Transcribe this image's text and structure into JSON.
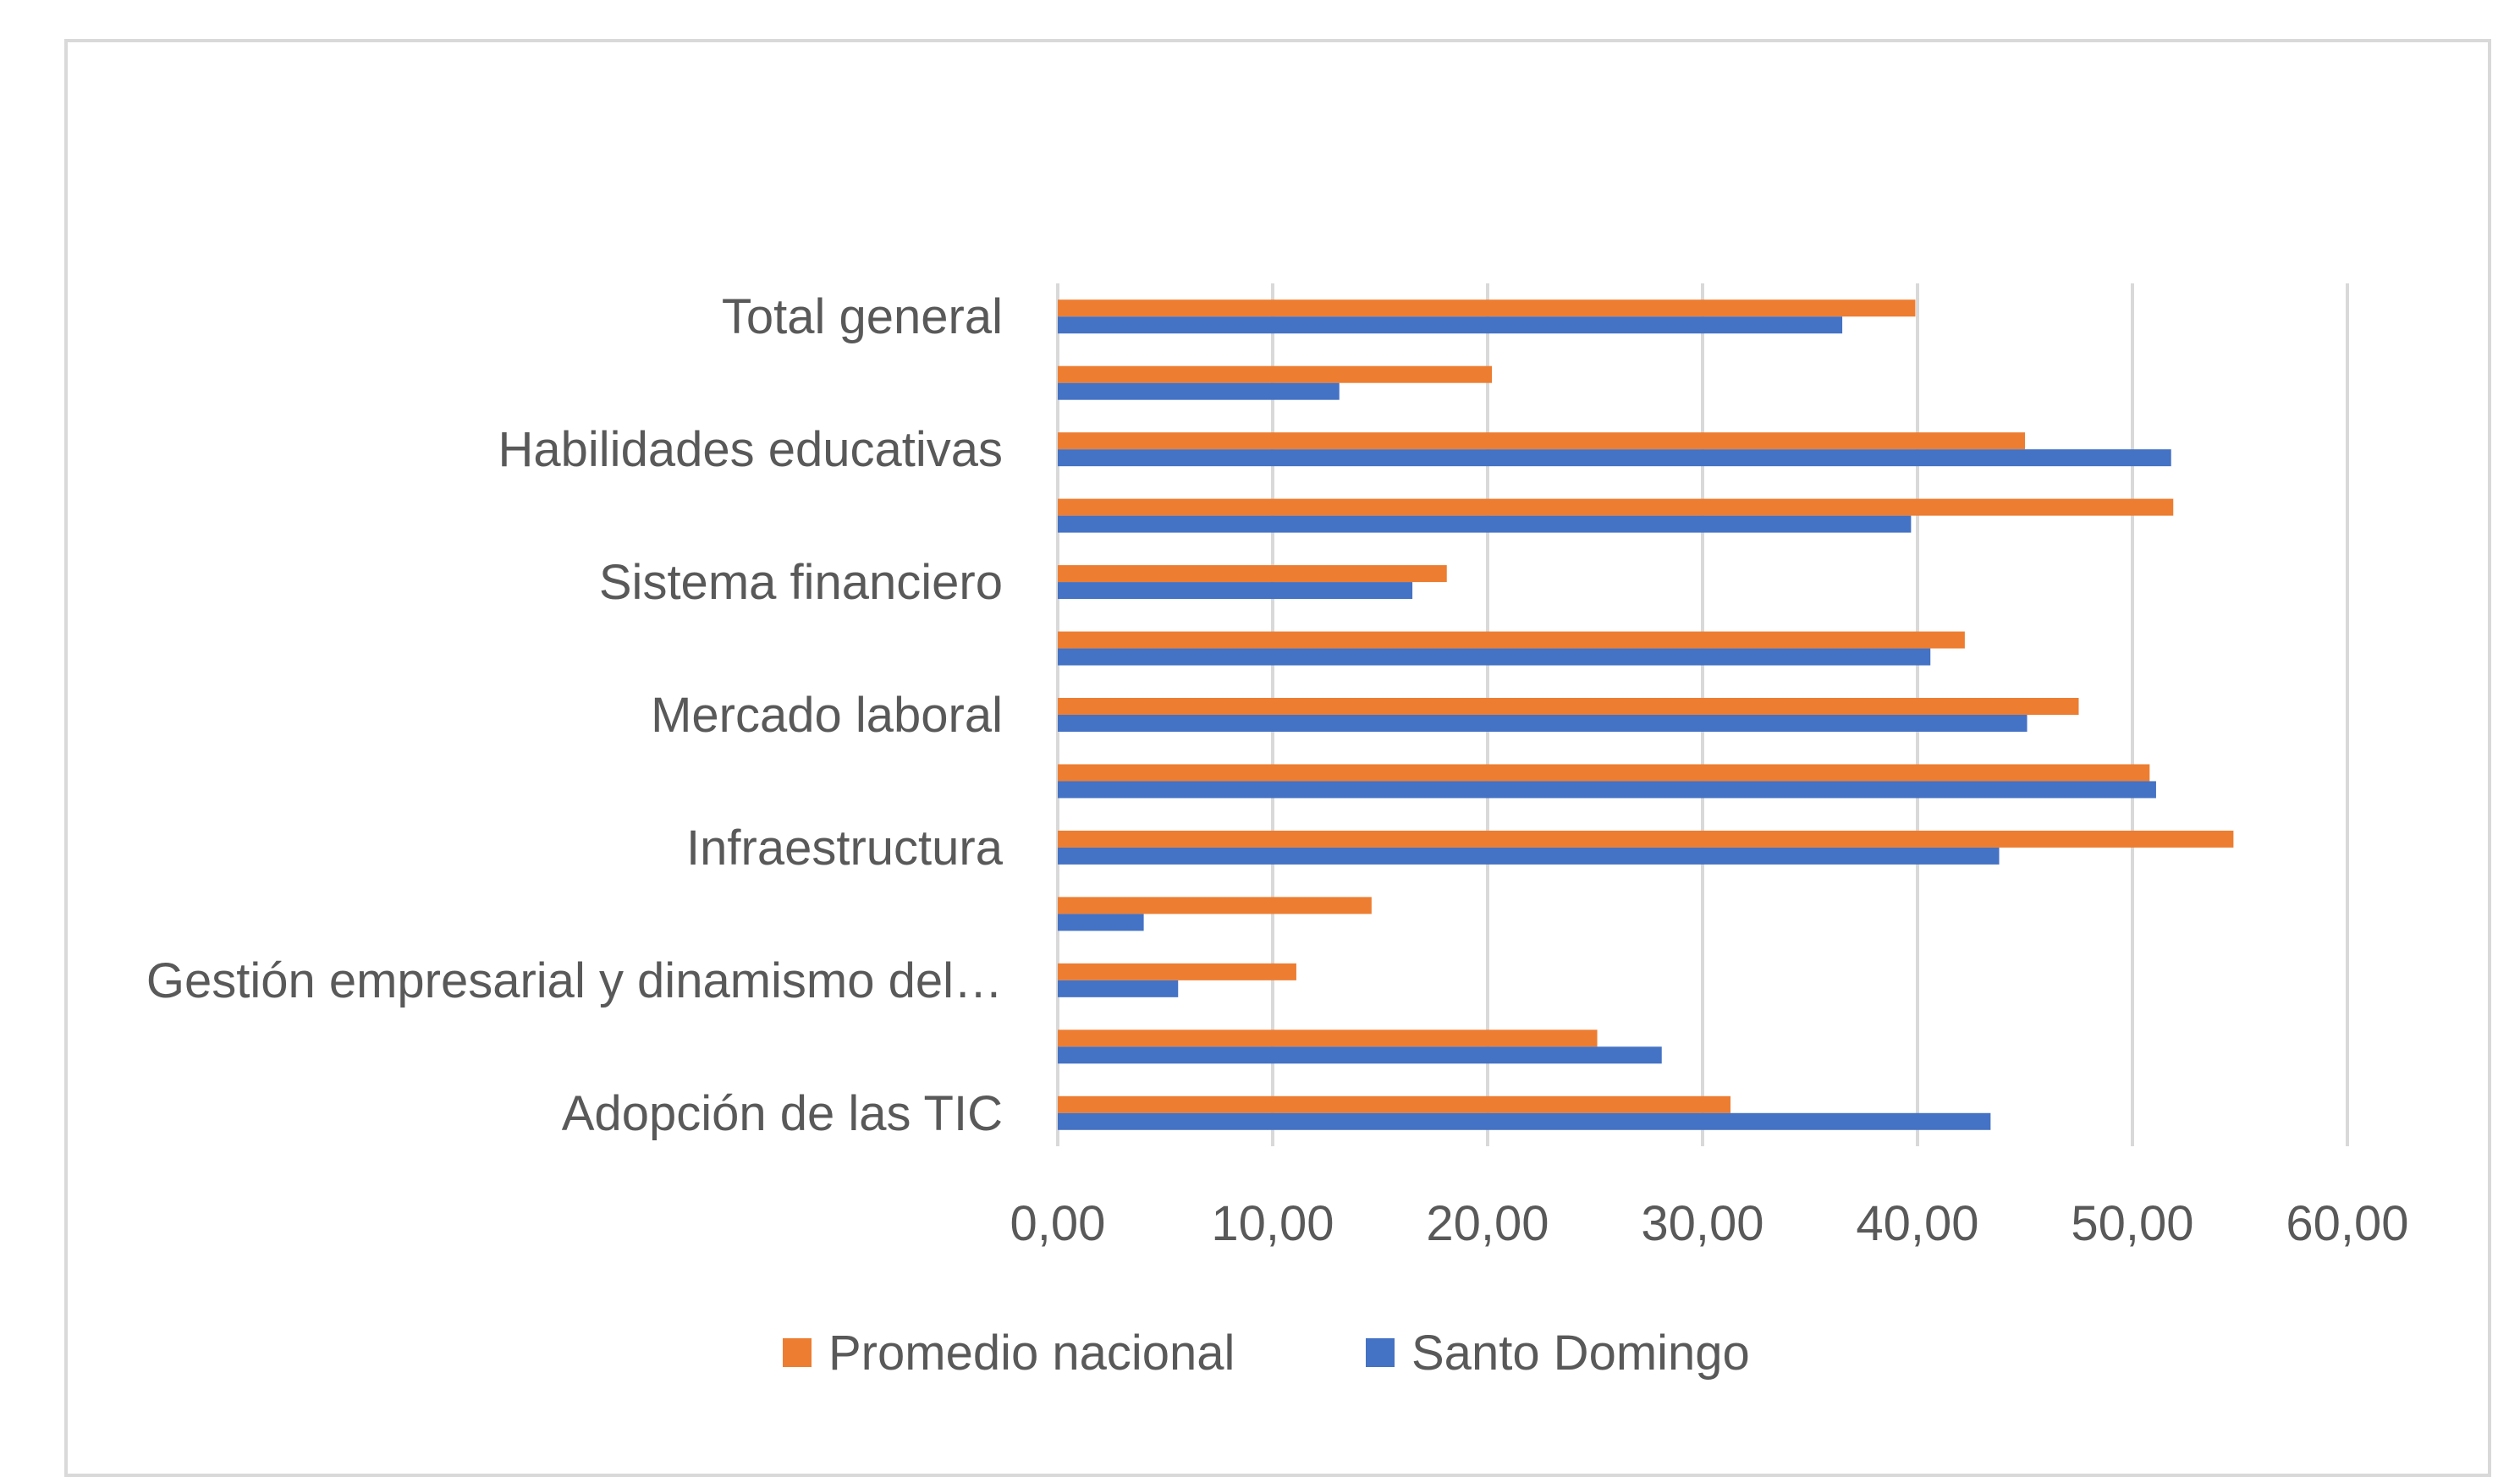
{
  "colors": {
    "promedio_nacional": "#ed7d31",
    "santo_domingo": "#4472c4",
    "grid": "#d9d9d9",
    "text": "#595959"
  },
  "chart_data": {
    "type": "bar",
    "orientation": "horizontal",
    "title": "",
    "xlabel": "",
    "ylabel": "",
    "xlim": [
      0,
      60
    ],
    "xticks": [
      "0,00",
      "10,00",
      "20,00",
      "30,00",
      "40,00",
      "50,00",
      "60,00"
    ],
    "xtick_values": [
      0,
      10,
      20,
      30,
      40,
      50,
      60
    ],
    "grid": "vertical",
    "legend": "bottom",
    "categories": [
      "Total general",
      "",
      "Habilidades educativas",
      "",
      "Sistema financiero",
      "",
      "Mercado laboral",
      "",
      "Infraestructura",
      "",
      "Gestión empresarial y dinamismo del…",
      "",
      "Adopción de las TIC"
    ],
    "series": [
      {
        "name": "Promedio nacional",
        "color": "#ed7d31",
        "values": [
          39.9,
          20.2,
          45.0,
          51.9,
          18.1,
          42.2,
          47.5,
          50.8,
          54.7,
          14.6,
          11.1,
          25.1,
          31.3
        ]
      },
      {
        "name": "Santo Domingo",
        "color": "#4472c4",
        "values": [
          36.5,
          13.1,
          51.8,
          39.7,
          16.5,
          40.6,
          45.1,
          51.1,
          43.8,
          4.0,
          5.6,
          28.1,
          43.4
        ]
      }
    ]
  }
}
